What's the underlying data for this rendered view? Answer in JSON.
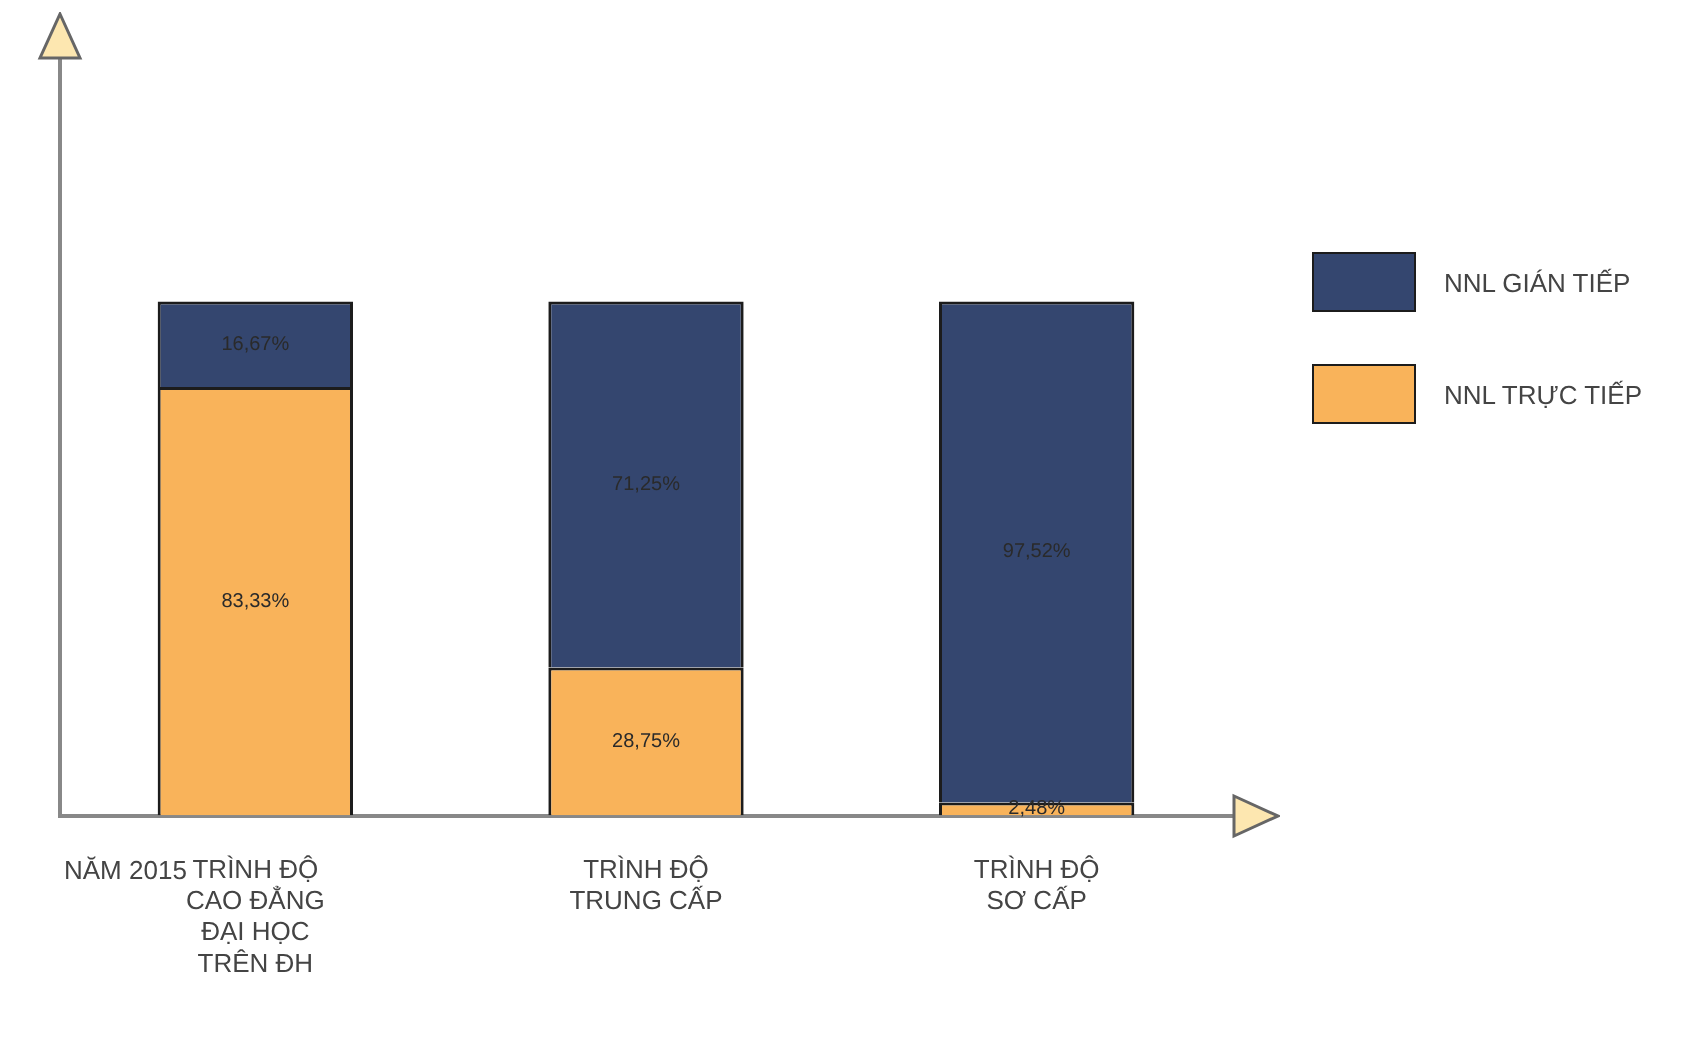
{
  "chart_data": {
    "type": "bar",
    "stacked": true,
    "xlabel": "NĂM 2015",
    "categories": [
      "TRÌNH ĐỘ\nCAO ĐẲNG\nĐẠI HỌC\nTRÊN ĐH",
      "TRÌNH ĐỘ\nTRUNG CẤP",
      "TRÌNH ĐỘ\nSƠ CẤP"
    ],
    "series": [
      {
        "name": "NNL TRỰC TIẾP",
        "color": "#f9b35a",
        "values": [
          83.33,
          28.75,
          2.48
        ],
        "value_labels": [
          "83,33%",
          "28,75%",
          "2,48%"
        ]
      },
      {
        "name": "NNL GIÁN TIẾP",
        "color": "#34466f",
        "values": [
          16.67,
          71.25,
          97.52
        ],
        "value_labels": [
          "16,67%",
          "71,25%",
          "97,52%"
        ]
      }
    ],
    "ylim": [
      0,
      147
    ],
    "tick_labels": "x",
    "grid": false,
    "legend": "right"
  }
}
